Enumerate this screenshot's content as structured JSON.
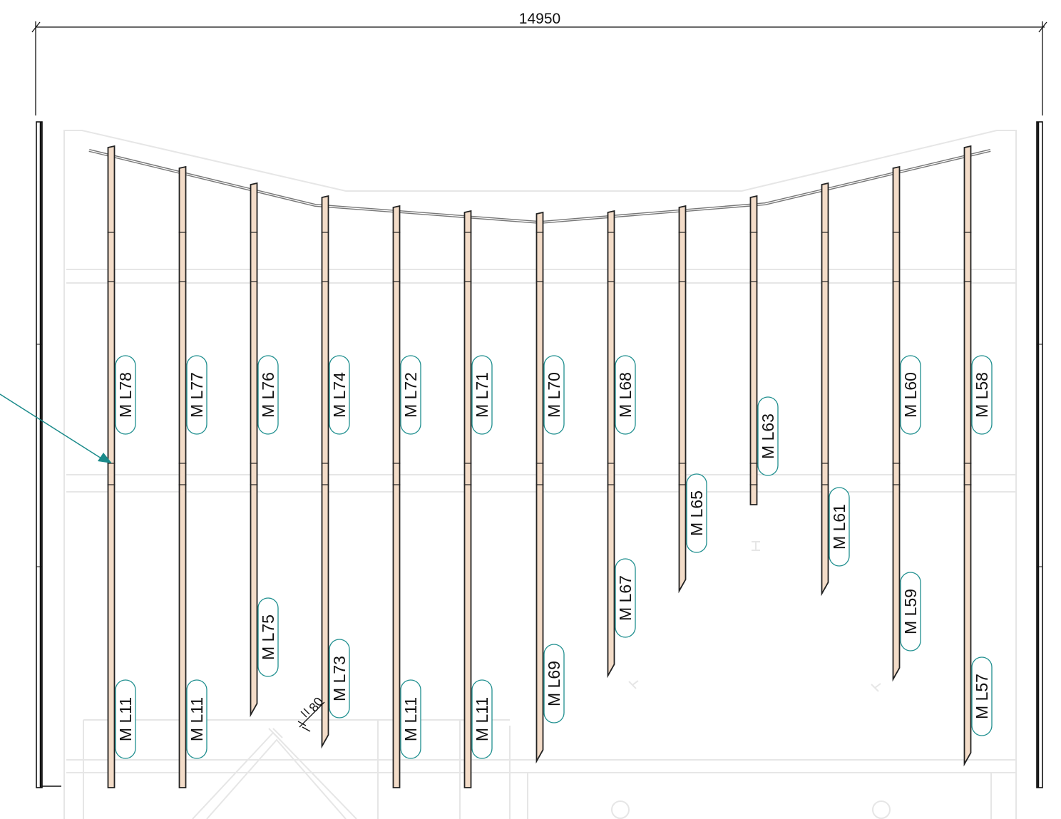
{
  "dimension": {
    "overall": "14950"
  },
  "thickness_note": "80",
  "colors": {
    "beam_fill": "#f3dcc8",
    "beam_stroke": "#222222",
    "tag_border": "#1f8f8f",
    "arrow": "#1a8a8a",
    "background_lines": "#e6e6e6"
  },
  "beams": [
    {
      "upper_tag": "M L78",
      "lower_tag": "M L11"
    },
    {
      "upper_tag": "M L77",
      "lower_tag": "M L11"
    },
    {
      "upper_tag": "M L76",
      "lower_tag": "M L75"
    },
    {
      "upper_tag": "M L74",
      "lower_tag": "M L73"
    },
    {
      "upper_tag": "M L72",
      "lower_tag": "M L11"
    },
    {
      "upper_tag": "M L71",
      "lower_tag": "M L11"
    },
    {
      "upper_tag": "M L70",
      "lower_tag": "M L69"
    },
    {
      "upper_tag": "M L68",
      "lower_tag": "M L67"
    },
    {
      "upper_tag": "M L65",
      "lower_tag": null
    },
    {
      "upper_tag": "M L63",
      "lower_tag": null
    },
    {
      "upper_tag": "M L61",
      "lower_tag": null
    },
    {
      "upper_tag": "M L60",
      "lower_tag": "M L59"
    },
    {
      "upper_tag": "M L58",
      "lower_tag": "M L57"
    }
  ]
}
